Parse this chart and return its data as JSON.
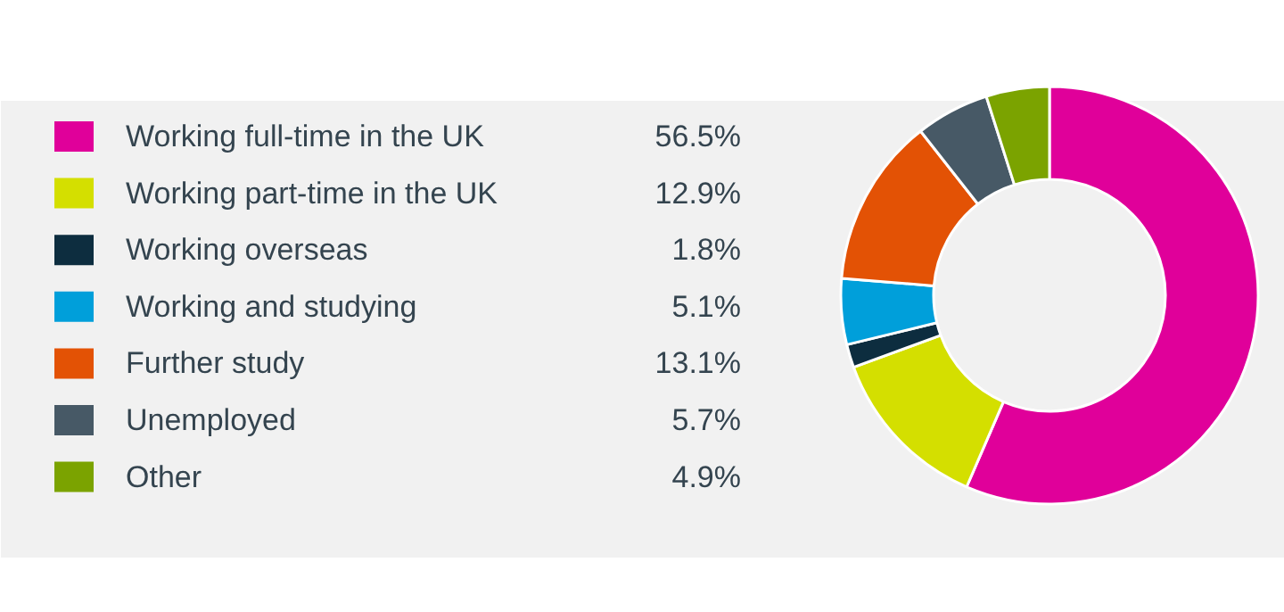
{
  "chart_data": {
    "type": "donut",
    "categories": [
      "Working full-time in the UK",
      "Working part-time in the UK",
      "Working overseas",
      "Working and studying",
      "Further study",
      "Unemployed",
      "Other"
    ],
    "values": [
      56.5,
      12.9,
      1.8,
      5.1,
      13.1,
      5.7,
      4.9
    ],
    "colors": [
      "#e0009a",
      "#d4df00",
      "#0d2d3f",
      "#009fda",
      "#e35205",
      "#475966",
      "#7ba300"
    ],
    "value_labels": [
      "56.5%",
      "12.9%",
      "1.8%",
      "5.1%",
      "13.1%",
      "5.7%",
      "4.9%"
    ],
    "legend": "left"
  }
}
